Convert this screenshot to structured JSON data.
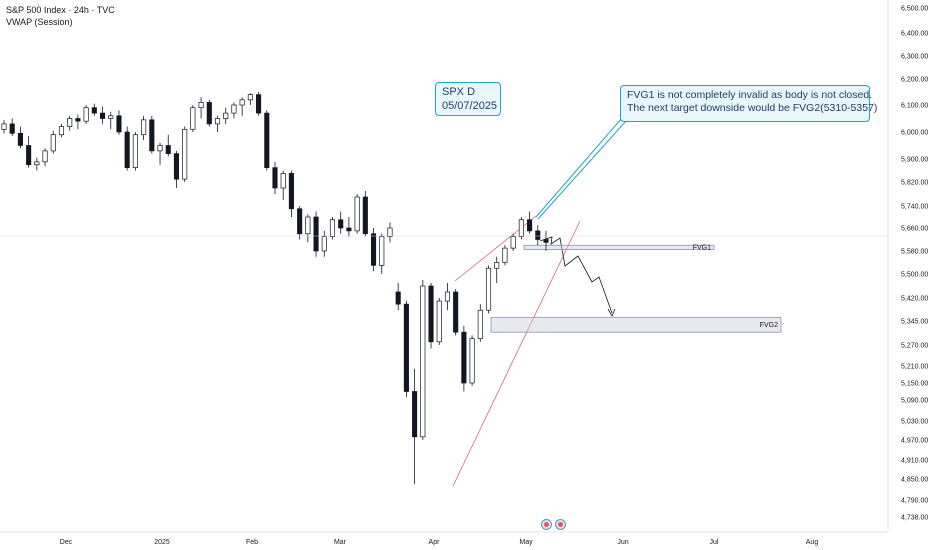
{
  "legend": {
    "symbol_line": "S&P 500 Index · 24h · TVC",
    "indicator_line": "VWAP (Session)"
  },
  "annotations": {
    "title_box": {
      "line1": "SPX D",
      "line2": "05/07/2025"
    },
    "note_box": {
      "line1": "FVG1 is not completely invalid as body is not closed.",
      "line2": "The next target downside would be FVG2(5310-5357)"
    },
    "fvg1_label": "FVG1",
    "fvg2_label": "FVG2"
  },
  "icons": [
    "earnings-icon",
    "earnings-icon"
  ],
  "chart_data": {
    "type": "candlestick",
    "title": "",
    "y_ticks": [
      6500,
      6400,
      6300,
      6200,
      6100,
      6000,
      5900,
      5820,
      5740,
      5660,
      5580,
      5500,
      5420,
      5345,
      5270,
      5210,
      5150,
      5090,
      5030,
      4970,
      4910,
      4850,
      4790,
      4738
    ],
    "y_tick_labels": [
      "6,500.00",
      "6,400.00",
      "6,300.00",
      "6,200.00",
      "6,100.00",
      "6,000.00",
      "5,900.00",
      "5,820.00",
      "5,740.00",
      "5,660.00",
      "5,580.00",
      "5,500.00",
      "5,420.00",
      "5,345.00",
      "5,270.00",
      "5,210.00",
      "5,150.00",
      "5,090.00",
      "5,030.00",
      "4,970.00",
      "4,910.00",
      "4,850.00",
      "4,790.00",
      "4,738.00"
    ],
    "x_tick_labels": [
      "Dec",
      "2025",
      "Feb",
      "Mar",
      "Apr",
      "May",
      "Jun",
      "Jul",
      "Aug"
    ],
    "ohlc": [
      [
        6010,
        6045,
        5995,
        6030
      ],
      [
        6030,
        6050,
        5985,
        5995
      ],
      [
        5995,
        6020,
        5940,
        5950
      ],
      [
        5950,
        5985,
        5870,
        5880
      ],
      [
        5880,
        5905,
        5860,
        5890
      ],
      [
        5890,
        5940,
        5875,
        5930
      ],
      [
        5930,
        6005,
        5920,
        5990
      ],
      [
        5990,
        6030,
        5980,
        6020
      ],
      [
        6020,
        6060,
        6005,
        6050
      ],
      [
        6050,
        6065,
        6010,
        6040
      ],
      [
        6040,
        6100,
        6030,
        6090
      ],
      [
        6090,
        6105,
        6060,
        6070
      ],
      [
        6070,
        6095,
        6030,
        6050
      ],
      [
        6050,
        6075,
        6010,
        6060
      ],
      [
        6060,
        6080,
        5990,
        6000
      ],
      [
        6000,
        6020,
        5860,
        5870
      ],
      [
        5870,
        6000,
        5860,
        5990
      ],
      [
        5990,
        6060,
        5970,
        6045
      ],
      [
        6045,
        6060,
        5920,
        5930
      ],
      [
        5930,
        5960,
        5880,
        5950
      ],
      [
        5950,
        5990,
        5910,
        5920
      ],
      [
        5920,
        5930,
        5800,
        5830
      ],
      [
        5830,
        6020,
        5820,
        6010
      ],
      [
        6010,
        6100,
        6000,
        6090
      ],
      [
        6090,
        6130,
        6050,
        6110
      ],
      [
        6110,
        6120,
        6020,
        6030
      ],
      [
        6030,
        6060,
        6000,
        6050
      ],
      [
        6050,
        6090,
        6030,
        6070
      ],
      [
        6070,
        6110,
        6050,
        6100
      ],
      [
        6100,
        6130,
        6060,
        6120
      ],
      [
        6120,
        6145,
        6100,
        6140
      ],
      [
        6140,
        6150,
        6060,
        6070
      ],
      [
        6070,
        6080,
        5860,
        5870
      ],
      [
        5870,
        5890,
        5780,
        5800
      ],
      [
        5800,
        5860,
        5760,
        5850
      ],
      [
        5850,
        5860,
        5700,
        5730
      ],
      [
        5730,
        5740,
        5620,
        5640
      ],
      [
        5640,
        5710,
        5610,
        5700
      ],
      [
        5700,
        5720,
        5560,
        5580
      ],
      [
        5580,
        5650,
        5560,
        5630
      ],
      [
        5630,
        5700,
        5620,
        5690
      ],
      [
        5690,
        5720,
        5640,
        5660
      ],
      [
        5660,
        5700,
        5630,
        5650
      ],
      [
        5650,
        5780,
        5640,
        5770
      ],
      [
        5770,
        5790,
        5630,
        5640
      ],
      [
        5640,
        5660,
        5510,
        5530
      ],
      [
        5530,
        5640,
        5500,
        5630
      ],
      [
        5630,
        5680,
        5610,
        5660
      ],
      [
        5440,
        5470,
        5380,
        5400
      ],
      [
        5400,
        5410,
        5100,
        5120
      ],
      [
        5120,
        5200,
        4835,
        4980
      ],
      [
        4980,
        5480,
        4970,
        5460
      ],
      [
        5460,
        5470,
        5260,
        5280
      ],
      [
        5280,
        5420,
        5270,
        5410
      ],
      [
        5410,
        5470,
        5380,
        5440
      ],
      [
        5440,
        5450,
        5300,
        5310
      ],
      [
        5310,
        5330,
        5120,
        5150
      ],
      [
        5150,
        5300,
        5140,
        5290
      ],
      [
        5290,
        5400,
        5280,
        5380
      ],
      [
        5380,
        5530,
        5370,
        5520
      ],
      [
        5520,
        5560,
        5470,
        5540
      ],
      [
        5540,
        5600,
        5530,
        5590
      ],
      [
        5590,
        5640,
        5580,
        5630
      ],
      [
        5630,
        5700,
        5620,
        5690
      ],
      [
        5690,
        5720,
        5640,
        5650
      ],
      [
        5650,
        5670,
        5600,
        5620
      ],
      [
        5620,
        5650,
        5580,
        5610
      ]
    ],
    "fvg_zones": [
      {
        "name": "FVG1",
        "low": 5585,
        "high": 5600
      },
      {
        "name": "FVG2",
        "low": 5310,
        "high": 5357
      }
    ],
    "hline": 5651
  }
}
